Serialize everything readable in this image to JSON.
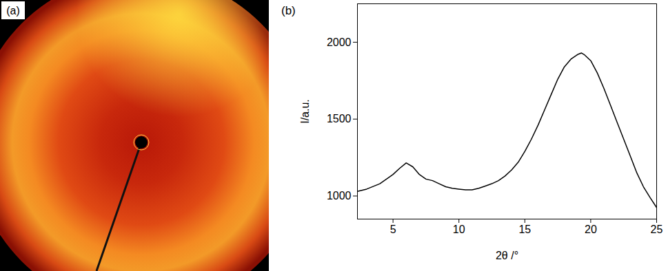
{
  "image_panel": {
    "label": "(a)"
  },
  "chart_data": {
    "type": "line",
    "title": "(b)",
    "x_label": "2θ /°",
    "y_label": "I/a.u.",
    "x": [
      2.3,
      3,
      4,
      5,
      5.5,
      6,
      6.5,
      7,
      7.5,
      8,
      8.5,
      9,
      9.5,
      10,
      10.5,
      11,
      11.5,
      12,
      12.5,
      13,
      13.5,
      14,
      14.5,
      15,
      15.5,
      16,
      16.5,
      17,
      17.5,
      18,
      18.5,
      19,
      19.3,
      19.5,
      20,
      20.5,
      21,
      21.5,
      22,
      22.5,
      23,
      23.5,
      24,
      24.5,
      25
    ],
    "values": [
      1030,
      1045,
      1080,
      1140,
      1180,
      1215,
      1190,
      1140,
      1110,
      1100,
      1080,
      1060,
      1050,
      1045,
      1040,
      1040,
      1050,
      1065,
      1080,
      1100,
      1130,
      1170,
      1220,
      1290,
      1370,
      1460,
      1560,
      1660,
      1760,
      1840,
      1890,
      1920,
      1930,
      1920,
      1880,
      1800,
      1700,
      1590,
      1480,
      1370,
      1260,
      1150,
      1060,
      990,
      925
    ],
    "color": "#000000",
    "xlim": [
      2.3,
      25
    ],
    "xticks": [
      5,
      10,
      15,
      20,
      25
    ],
    "ylim": [
      850,
      2250
    ],
    "yticks": [
      1000,
      1500,
      2000
    ],
    "grid": false
  }
}
